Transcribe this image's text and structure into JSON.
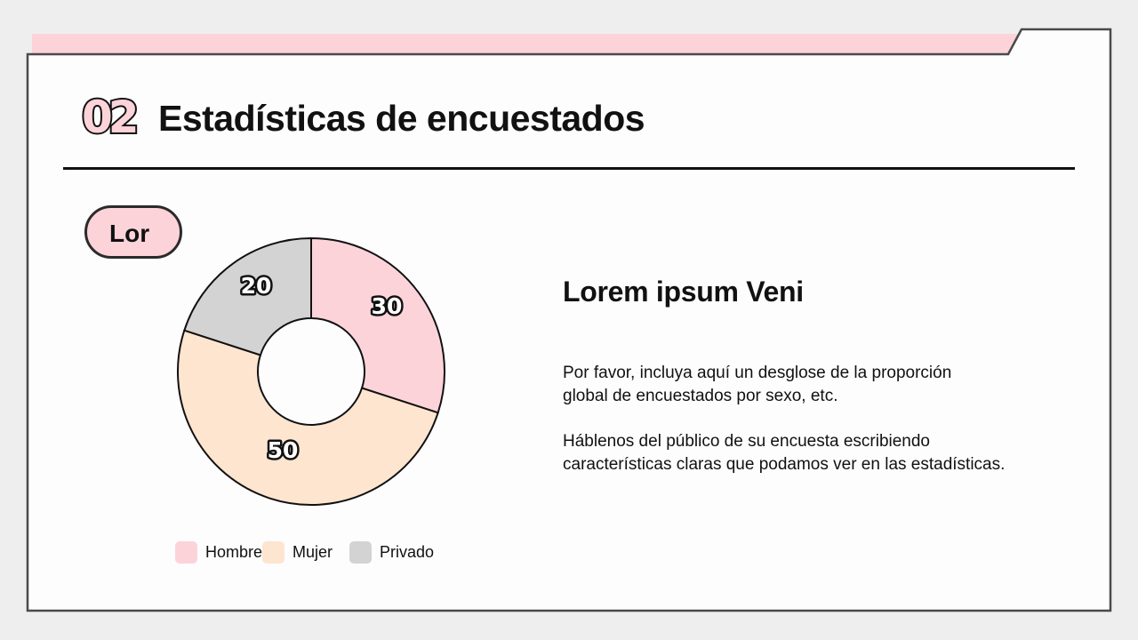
{
  "slide": {
    "number": "02",
    "title": "Estadísticas de encuestados",
    "pill_label": "Lor",
    "subtitle": "Lorem ipsum Veni",
    "paragraphs": [
      "Por favor, incluya aquí un desglose de la proporción global de encuestados por sexo, etc.",
      "Háblenos del público de su encuesta escribiendo características claras que podamos ver en las estadísticas."
    ],
    "paragraph_lines": [
      [
        "Por favor, incluya aquí un desglose de la proporción",
        "global de encuestados por sexo, etc."
      ],
      [
        "Háblenos del público de su encuesta escribiendo",
        "características claras que podamos ver en las estadísticas."
      ]
    ]
  },
  "colors": {
    "background": "#efeeef",
    "frame_border": "#4a4a4a",
    "accent_pink": "#fdd3da",
    "peach": "#fde5d0",
    "gray": "#d4d3d4",
    "text": "#111111"
  },
  "legend": [
    {
      "label": "Hombre",
      "color": "#fdd3da"
    },
    {
      "label": "Mujer",
      "color": "#fde5d0"
    },
    {
      "label": "Privado",
      "color": "#d4d3d4"
    }
  ],
  "chart_data": {
    "type": "pie",
    "variant": "donut",
    "title": "",
    "categories": [
      "Hombre",
      "Mujer",
      "Privado"
    ],
    "values": [
      30,
      50,
      20
    ],
    "colors": [
      "#fdd3da",
      "#fde5d0",
      "#d4d3d4"
    ],
    "data_labels": [
      "30",
      "50",
      "20"
    ],
    "start_angle_deg": 0,
    "direction": "clockwise",
    "legend_position": "bottom"
  }
}
